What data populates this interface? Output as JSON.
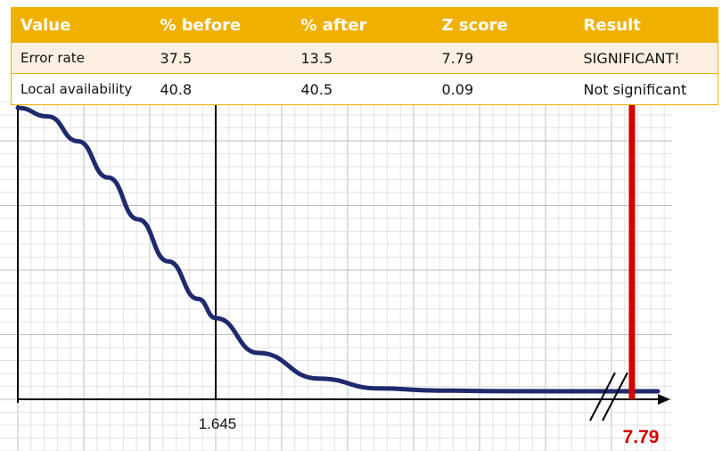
{
  "table": {
    "headers": [
      "Value",
      "% before",
      "% after",
      "Z score",
      "Result"
    ],
    "rows": [
      [
        "Error rate",
        "37.5",
        "13.5",
        "7.79",
        "SIGNIFICANT!"
      ],
      [
        "Local availability",
        "40.8",
        "40.5",
        "0.09",
        "Not significant"
      ]
    ],
    "header_bg": "#f0b000"
  },
  "chart_data": {
    "type": "line",
    "x_tick_labels": [
      "1.645",
      "7.79"
    ],
    "x_axis_break": true,
    "grid": true,
    "critical_value": 1.645,
    "z_score_marker": 7.79,
    "curve_color": "#1f2a6e",
    "marker_color": "#d00000",
    "curve_shape": "normal distribution right tail (density vs z)",
    "curve": {
      "x": [
        0.0,
        0.25,
        0.5,
        0.75,
        1.0,
        1.25,
        1.5,
        1.645,
        2.0,
        2.5,
        3.0,
        3.5,
        4.0,
        "7.79"
      ],
      "y": [
        0.399,
        0.387,
        0.352,
        0.301,
        0.242,
        0.183,
        0.13,
        0.103,
        0.054,
        0.018,
        0.004,
        0.001,
        0.0001,
        0.0
      ]
    }
  }
}
